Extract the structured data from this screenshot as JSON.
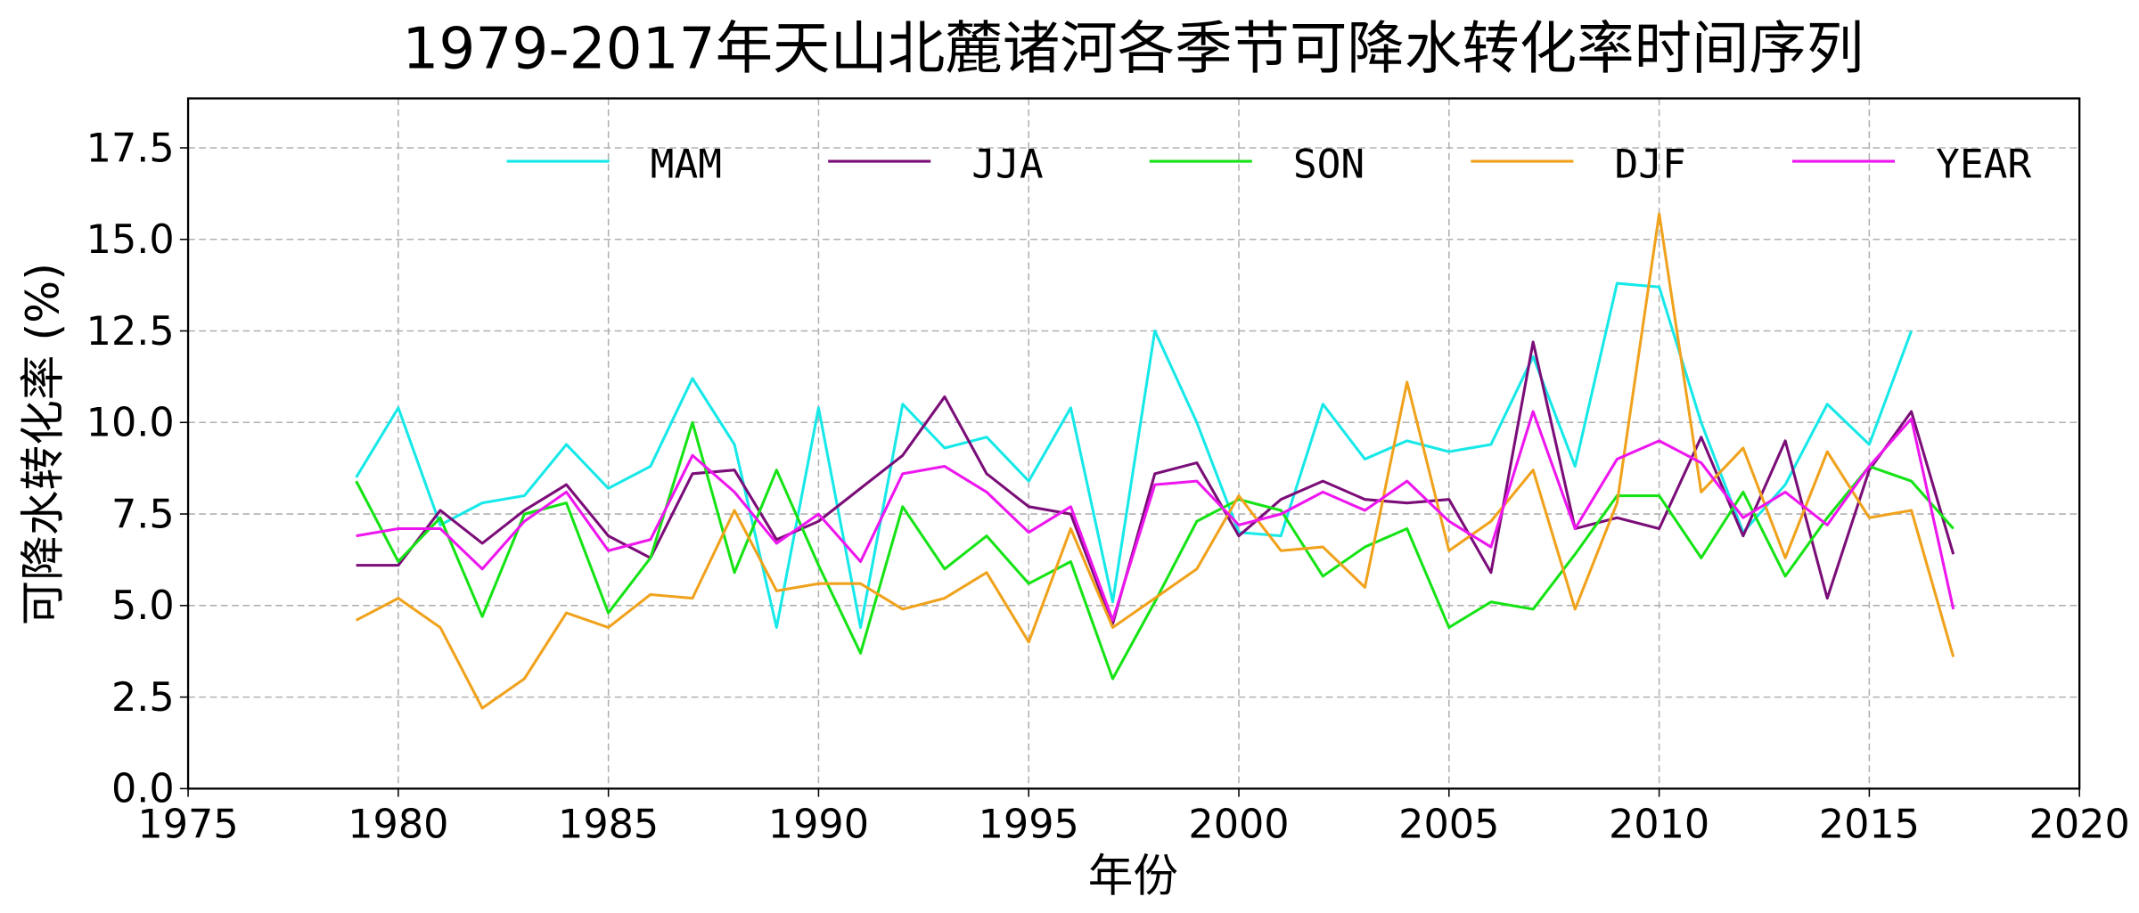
{
  "chart_data": {
    "type": "line",
    "title": "1979-2017年天山北麓诸河各季节可降水转化率时间序列",
    "xlabel": "年份",
    "ylabel": "可降水转化率 (%)",
    "xlim": [
      1975,
      2020
    ],
    "ylim": [
      0,
      18.85
    ],
    "xticks": [
      "1975",
      "1980",
      "1985",
      "1990",
      "1995",
      "2000",
      "2005",
      "2010",
      "2015",
      "2020"
    ],
    "yticks": [
      "0.0",
      "2.5",
      "5.0",
      "7.5",
      "10.0",
      "12.5",
      "15.0",
      "17.5"
    ],
    "grid": true,
    "legend_position": "top",
    "x": [
      1979,
      1980,
      1981,
      1982,
      1983,
      1984,
      1985,
      1986,
      1987,
      1988,
      1989,
      1990,
      1991,
      1992,
      1993,
      1994,
      1995,
      1996,
      1997,
      1998,
      1999,
      2000,
      2001,
      2002,
      2003,
      2004,
      2005,
      2006,
      2007,
      2008,
      2009,
      2010,
      2011,
      2012,
      2013,
      2014,
      2015,
      2016,
      2017
    ],
    "series": [
      {
        "name": "MAM",
        "color": "#17e8e8",
        "values": [
          8.5,
          10.4,
          7.2,
          7.8,
          8.0,
          9.4,
          8.2,
          8.8,
          11.2,
          9.4,
          4.4,
          10.4,
          4.4,
          10.5,
          9.3,
          9.6,
          8.4,
          10.4,
          5.1,
          12.5,
          10.0,
          7.0,
          6.9,
          10.5,
          9.0,
          9.5,
          9.2,
          9.4,
          11.8,
          8.8,
          13.8,
          13.7,
          10.0,
          7.0,
          8.3,
          10.5,
          9.4,
          12.5,
          null
        ]
      },
      {
        "name": "JJA",
        "color": "#7b0d78",
        "values": [
          6.1,
          6.1,
          7.6,
          6.7,
          7.6,
          8.3,
          6.9,
          6.3,
          8.6,
          8.7,
          6.8,
          7.3,
          8.2,
          9.1,
          10.7,
          8.6,
          7.7,
          7.5,
          4.5,
          8.6,
          8.9,
          6.9,
          7.9,
          8.4,
          7.9,
          7.8,
          7.9,
          5.9,
          12.2,
          7.1,
          7.4,
          7.1,
          9.6,
          6.9,
          9.5,
          5.2,
          8.7,
          10.3,
          6.4
        ]
      },
      {
        "name": "SON",
        "color": "#16e316",
        "values": [
          8.4,
          6.2,
          7.4,
          4.7,
          7.5,
          7.8,
          4.8,
          6.3,
          10.0,
          5.9,
          8.7,
          6.1,
          3.7,
          7.7,
          6.0,
          6.9,
          5.6,
          6.2,
          3.0,
          5.1,
          7.3,
          7.9,
          7.6,
          5.8,
          6.6,
          7.1,
          4.4,
          5.1,
          4.9,
          6.4,
          8.0,
          8.0,
          6.3,
          8.1,
          5.8,
          7.4,
          8.8,
          8.4,
          7.1
        ]
      },
      {
        "name": "DJF",
        "color": "#f0a21c",
        "values": [
          4.6,
          5.2,
          4.4,
          2.2,
          3.0,
          4.8,
          4.4,
          5.3,
          5.2,
          7.6,
          5.4,
          5.6,
          5.6,
          4.9,
          5.2,
          5.9,
          4.0,
          7.1,
          4.4,
          5.2,
          6.0,
          8.0,
          6.5,
          6.6,
          5.5,
          11.1,
          6.5,
          7.3,
          8.7,
          4.9,
          7.8,
          15.7,
          8.1,
          9.3,
          6.3,
          9.2,
          7.4,
          7.6,
          3.6
        ]
      },
      {
        "name": "YEAR",
        "color": "#ee16ee",
        "values": [
          6.9,
          7.1,
          7.1,
          6.0,
          7.3,
          8.1,
          6.5,
          6.8,
          9.1,
          8.1,
          6.7,
          7.5,
          6.2,
          8.6,
          8.8,
          8.1,
          7.0,
          7.7,
          4.6,
          8.3,
          8.4,
          7.2,
          7.5,
          8.1,
          7.6,
          8.4,
          7.3,
          6.6,
          10.3,
          7.1,
          9.0,
          9.5,
          8.9,
          7.4,
          8.1,
          7.2,
          8.8,
          10.1,
          4.9
        ]
      }
    ]
  }
}
